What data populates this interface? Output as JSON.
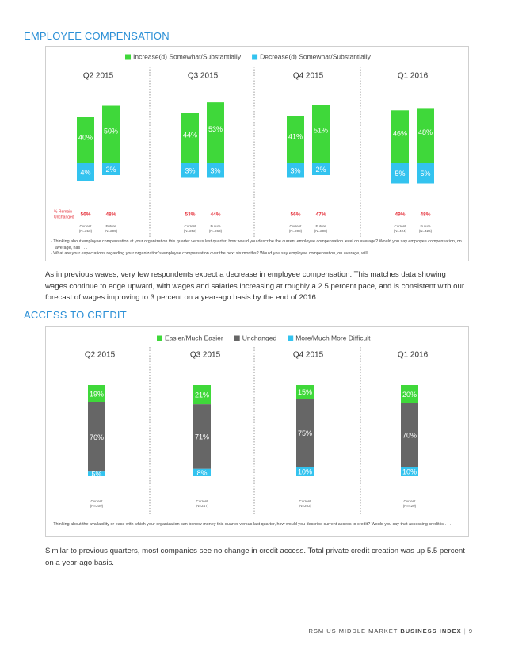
{
  "comp": {
    "title": "EMPLOYEE COMPENSATION",
    "legend": [
      "Increase(d) Somewhat/Substantially",
      "Decrease(d) Somewhat/Substantially"
    ],
    "colors": [
      "#3fd83a",
      "#33c3ef"
    ],
    "unchanged_label": [
      "% Remain",
      "Unchanged"
    ],
    "unchanged_color": "#e5323c",
    "quarters": [
      {
        "name": "Q2 2015",
        "increase": [
          40,
          50
        ],
        "increase_labels": [
          "40%",
          "50%"
        ],
        "decrease": [
          4,
          2
        ],
        "decrease_labels": [
          "4%",
          "2%"
        ],
        "unchanged": [
          56,
          48
        ],
        "unchanged_labels": [
          "56%",
          "48%"
        ],
        "samples": [
          [
            "Current",
            "(N=210)"
          ],
          [
            "Future",
            "(N=209)"
          ]
        ]
      },
      {
        "name": "Q3 2015",
        "increase": [
          44,
          53
        ],
        "increase_labels": [
          "44%",
          "53%"
        ],
        "decrease": [
          3,
          3
        ],
        "decrease_labels": [
          "3%",
          "3%"
        ],
        "unchanged": [
          53,
          44
        ],
        "unchanged_labels": [
          "53%",
          "44%"
        ],
        "samples": [
          [
            "Current",
            "(N=252)"
          ],
          [
            "Future",
            "(N=263)"
          ]
        ]
      },
      {
        "name": "Q4 2015",
        "increase": [
          41,
          51
        ],
        "increase_labels": [
          "41%",
          "51%"
        ],
        "decrease": [
          3,
          2
        ],
        "decrease_labels": [
          "3%",
          "2%"
        ],
        "unchanged": [
          56,
          47
        ],
        "unchanged_labels": [
          "56%",
          "47%"
        ],
        "samples": [
          [
            "Current",
            "(N=208)"
          ],
          [
            "Future",
            "(N=208)"
          ]
        ]
      },
      {
        "name": "Q1 2016",
        "increase": [
          46,
          48
        ],
        "increase_labels": [
          "46%",
          "48%"
        ],
        "decrease": [
          5,
          5
        ],
        "decrease_labels": [
          "5%",
          "5%"
        ],
        "unchanged": [
          49,
          48
        ],
        "unchanged_labels": [
          "49%",
          "48%"
        ],
        "samples": [
          [
            "Current",
            "(N=424)"
          ],
          [
            "Future",
            "(N=426)"
          ]
        ]
      }
    ],
    "notes": [
      "Thinking about employee compensation at your organization this quarter versus last quarter, how would you describe the current employee compensation level on average? Would you say employee compensation, on average, has . . .",
      "What are your expectations regarding your organization's employee compensation over the next six months? Would you say employee compensation, on average, will . . ."
    ]
  },
  "para1": "As in previous waves, very few respondents expect a decrease in employee compensation. This matches data showing wages continue to edge upward, with wages and salaries increasing at roughly a 2.5 percent pace, and is consistent with our forecast of wages improving to 3 percent on a year-ago basis by the end of 2016.",
  "credit": {
    "title": "ACCESS TO CREDIT",
    "legend": [
      "Easier/Much Easier",
      "Unchanged",
      "More/Much More Difficult"
    ],
    "colors": [
      "#3fd83a",
      "#666666",
      "#33c3ef"
    ],
    "quarters": [
      {
        "name": "Q2 2015",
        "values": [
          19,
          76,
          5
        ],
        "value_labels": [
          "19%",
          "76%",
          "5%"
        ],
        "sample": [
          "Current",
          "(N=209)"
        ]
      },
      {
        "name": "Q3 2015",
        "values": [
          21,
          71,
          8
        ],
        "value_labels": [
          "21%",
          "71%",
          "8%"
        ],
        "sample": [
          "Current",
          "(N=247)"
        ]
      },
      {
        "name": "Q4 2015",
        "values": [
          15,
          75,
          10
        ],
        "value_labels": [
          "15%",
          "75%",
          "10%"
        ],
        "sample": [
          "Current",
          "(N=203)"
        ]
      },
      {
        "name": "Q1 2016",
        "values": [
          20,
          70,
          10
        ],
        "value_labels": [
          "20%",
          "70%",
          "10%"
        ],
        "sample": [
          "Current",
          "(N=420)"
        ]
      }
    ],
    "notes": [
      "Thinking about the availability or ease with which your organization can borrow money this quarter versus last quarter, how would you describe current access to credit? Would you say that accessing credit is . . ."
    ]
  },
  "para2": "Similar to previous quarters, most companies see no change in credit access. Total private credit creation was up 5.5 percent on a year-ago basis.",
  "footer": {
    "text": "RSM US MIDDLE MARKET",
    "bold": "BUSINESS INDEX",
    "page": "9"
  }
}
